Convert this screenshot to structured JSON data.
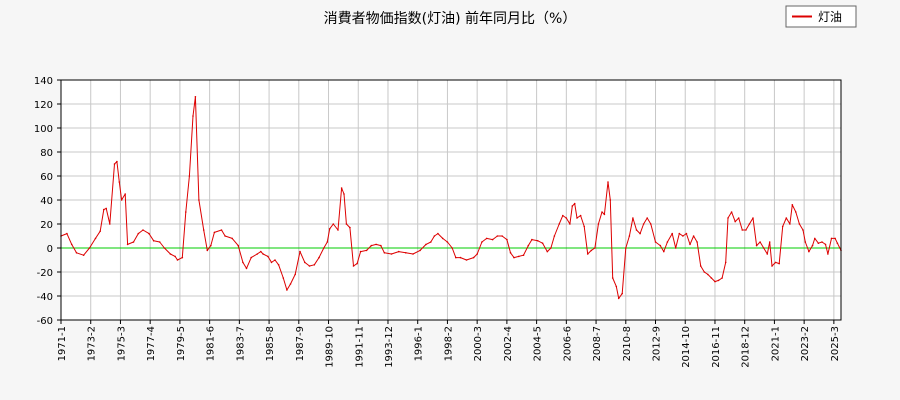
{
  "chart_data": {
    "type": "line",
    "title": "消費者物価指数(灯油) 前年同月比（%）",
    "xlabel": "",
    "ylabel": "",
    "ylim": [
      -60,
      140
    ],
    "yticks": [
      -60,
      -40,
      -20,
      0,
      20,
      40,
      60,
      80,
      100,
      120,
      140
    ],
    "grid": true,
    "legend": "top-right",
    "x_range": [
      "1971-1",
      "2025-9"
    ],
    "x_ticks": [
      "1971-1",
      "1973-2",
      "1975-3",
      "1977-4",
      "1979-5",
      "1981-6",
      "1983-7",
      "1985-8",
      "1987-9",
      "1989-10",
      "1991-11",
      "1993-12",
      "1996-1",
      "1998-2",
      "2000-3",
      "2002-4",
      "2004-5",
      "2006-6",
      "2008-7",
      "2010-8",
      "2012-9",
      "2014-10",
      "2016-11",
      "2018-12",
      "2021-1",
      "2023-2",
      "2025-3"
    ],
    "reference_line": {
      "y": 0,
      "color": "#00cc00"
    },
    "series": [
      {
        "name": "灯油",
        "color": "#dd0000",
        "points": [
          [
            "1971-1",
            10
          ],
          [
            "1971-6",
            12
          ],
          [
            "1971-10",
            3
          ],
          [
            "1972-2",
            -4
          ],
          [
            "1972-8",
            -6
          ],
          [
            "1973-1",
            0
          ],
          [
            "1973-6",
            8
          ],
          [
            "1973-10",
            14
          ],
          [
            "1974-1",
            32
          ],
          [
            "1974-3",
            33
          ],
          [
            "1974-6",
            20
          ],
          [
            "1974-10",
            70
          ],
          [
            "1974-12",
            72
          ],
          [
            "1975-2",
            55
          ],
          [
            "1975-4",
            40
          ],
          [
            "1975-7",
            45
          ],
          [
            "1975-9",
            3
          ],
          [
            "1976-2",
            5
          ],
          [
            "1976-6",
            12
          ],
          [
            "1976-10",
            15
          ],
          [
            "1977-3",
            12
          ],
          [
            "1977-7",
            6
          ],
          [
            "1977-12",
            5
          ],
          [
            "1978-4",
            0
          ],
          [
            "1978-9",
            -5
          ],
          [
            "1979-1",
            -7
          ],
          [
            "1979-3",
            -10
          ],
          [
            "1979-7",
            -8
          ],
          [
            "1979-10",
            30
          ],
          [
            "1980-1",
            60
          ],
          [
            "1980-4",
            110
          ],
          [
            "1980-6",
            126
          ],
          [
            "1980-9",
            40
          ],
          [
            "1981-1",
            15
          ],
          [
            "1981-4",
            -2
          ],
          [
            "1981-7",
            2
          ],
          [
            "1981-10",
            13
          ],
          [
            "1982-4",
            15
          ],
          [
            "1982-7",
            10
          ],
          [
            "1983-1",
            8
          ],
          [
            "1983-6",
            2
          ],
          [
            "1983-10",
            -12
          ],
          [
            "1984-1",
            -17
          ],
          [
            "1984-5",
            -8
          ],
          [
            "1984-10",
            -5
          ],
          [
            "1985-1",
            -3
          ],
          [
            "1985-3",
            -5
          ],
          [
            "1985-7",
            -7
          ],
          [
            "1985-10",
            -12
          ],
          [
            "1986-1",
            -10
          ],
          [
            "1986-4",
            -14
          ],
          [
            "1986-8",
            -25
          ],
          [
            "1986-11",
            -35
          ],
          [
            "1987-2",
            -30
          ],
          [
            "1987-6",
            -22
          ],
          [
            "1987-10",
            -3
          ],
          [
            "1988-2",
            -12
          ],
          [
            "1988-6",
            -15
          ],
          [
            "1988-10",
            -14
          ],
          [
            "1989-2",
            -8
          ],
          [
            "1989-6",
            0
          ],
          [
            "1989-9",
            5
          ],
          [
            "1989-11",
            16
          ],
          [
            "1990-2",
            20
          ],
          [
            "1990-6",
            15
          ],
          [
            "1990-9",
            50
          ],
          [
            "1990-11",
            45
          ],
          [
            "1991-1",
            20
          ],
          [
            "1991-4",
            17
          ],
          [
            "1991-7",
            -15
          ],
          [
            "1991-10",
            -13
          ],
          [
            "1992-1",
            -3
          ],
          [
            "1992-6",
            -2
          ],
          [
            "1992-10",
            2
          ],
          [
            "1993-2",
            3
          ],
          [
            "1993-6",
            2
          ],
          [
            "1993-9",
            -4
          ],
          [
            "1994-3",
            -5
          ],
          [
            "1994-9",
            -3
          ],
          [
            "1995-3",
            -4
          ],
          [
            "1995-9",
            -5
          ],
          [
            "1996-3",
            -2
          ],
          [
            "1996-8",
            3
          ],
          [
            "1996-12",
            5
          ],
          [
            "1997-3",
            10
          ],
          [
            "1997-6",
            12
          ],
          [
            "1997-10",
            8
          ],
          [
            "1998-2",
            5
          ],
          [
            "1998-6",
            0
          ],
          [
            "1998-9",
            -8
          ],
          [
            "1999-1",
            -8
          ],
          [
            "1999-6",
            -10
          ],
          [
            "1999-12",
            -8
          ],
          [
            "2000-3",
            -5
          ],
          [
            "2000-7",
            5
          ],
          [
            "2000-11",
            8
          ],
          [
            "2001-4",
            7
          ],
          [
            "2001-8",
            10
          ],
          [
            "2001-12",
            10
          ],
          [
            "2002-4",
            7
          ],
          [
            "2002-7",
            -4
          ],
          [
            "2002-10",
            -8
          ],
          [
            "2003-2",
            -7
          ],
          [
            "2003-6",
            -6
          ],
          [
            "2003-10",
            2
          ],
          [
            "2004-1",
            7
          ],
          [
            "2004-6",
            6
          ],
          [
            "2004-10",
            4
          ],
          [
            "2005-2",
            -3
          ],
          [
            "2005-5",
            0
          ],
          [
            "2005-8",
            10
          ],
          [
            "2005-12",
            20
          ],
          [
            "2006-3",
            27
          ],
          [
            "2006-6",
            25
          ],
          [
            "2006-9",
            20
          ],
          [
            "2006-11",
            35
          ],
          [
            "2007-1",
            37
          ],
          [
            "2007-3",
            25
          ],
          [
            "2007-6",
            27
          ],
          [
            "2007-9",
            18
          ],
          [
            "2007-12",
            -5
          ],
          [
            "2008-3",
            -2
          ],
          [
            "2008-6",
            0
          ],
          [
            "2008-9",
            20
          ],
          [
            "2008-12",
            30
          ],
          [
            "2009-2",
            28
          ],
          [
            "2009-5",
            55
          ],
          [
            "2009-7",
            40
          ],
          [
            "2009-9",
            -25
          ],
          [
            "2009-12",
            -32
          ],
          [
            "2010-2",
            -42
          ],
          [
            "2010-5",
            -38
          ],
          [
            "2010-8",
            0
          ],
          [
            "2010-11",
            10
          ],
          [
            "2011-2",
            25
          ],
          [
            "2011-5",
            15
          ],
          [
            "2011-8",
            12
          ],
          [
            "2011-11",
            20
          ],
          [
            "2012-2",
            25
          ],
          [
            "2012-5",
            20
          ],
          [
            "2012-9",
            5
          ],
          [
            "2013-1",
            2
          ],
          [
            "2013-4",
            -3
          ],
          [
            "2013-7",
            5
          ],
          [
            "2013-11",
            12
          ],
          [
            "2014-2",
            0
          ],
          [
            "2014-5",
            12
          ],
          [
            "2014-8",
            10
          ],
          [
            "2014-11",
            12
          ],
          [
            "2015-2",
            3
          ],
          [
            "2015-5",
            10
          ],
          [
            "2015-8",
            5
          ],
          [
            "2015-11",
            -15
          ],
          [
            "2016-2",
            -20
          ],
          [
            "2016-5",
            -22
          ],
          [
            "2016-8",
            -25
          ],
          [
            "2016-11",
            -28
          ],
          [
            "2017-2",
            -27
          ],
          [
            "2017-5",
            -25
          ],
          [
            "2017-8",
            -12
          ],
          [
            "2017-10",
            25
          ],
          [
            "2018-1",
            30
          ],
          [
            "2018-4",
            22
          ],
          [
            "2018-7",
            25
          ],
          [
            "2018-10",
            15
          ],
          [
            "2019-1",
            15
          ],
          [
            "2019-4",
            20
          ],
          [
            "2019-7",
            25
          ],
          [
            "2019-10",
            2
          ],
          [
            "2020-1",
            5
          ],
          [
            "2020-4",
            0
          ],
          [
            "2020-7",
            -5
          ],
          [
            "2020-9",
            5
          ],
          [
            "2020-11",
            -15
          ],
          [
            "2021-2",
            -12
          ],
          [
            "2021-5",
            -13
          ],
          [
            "2021-8",
            18
          ],
          [
            "2021-11",
            25
          ],
          [
            "2022-2",
            20
          ],
          [
            "2022-4",
            36
          ],
          [
            "2022-7",
            30
          ],
          [
            "2022-10",
            20
          ],
          [
            "2023-1",
            15
          ],
          [
            "2023-3",
            5
          ],
          [
            "2023-6",
            -3
          ],
          [
            "2023-9",
            2
          ],
          [
            "2023-11",
            8
          ],
          [
            "2024-2",
            4
          ],
          [
            "2024-5",
            5
          ],
          [
            "2024-8",
            3
          ],
          [
            "2024-10",
            -5
          ],
          [
            "2025-1",
            8
          ],
          [
            "2025-4",
            8
          ],
          [
            "2025-6",
            4
          ],
          [
            "2025-9",
            -2
          ]
        ]
      }
    ]
  }
}
